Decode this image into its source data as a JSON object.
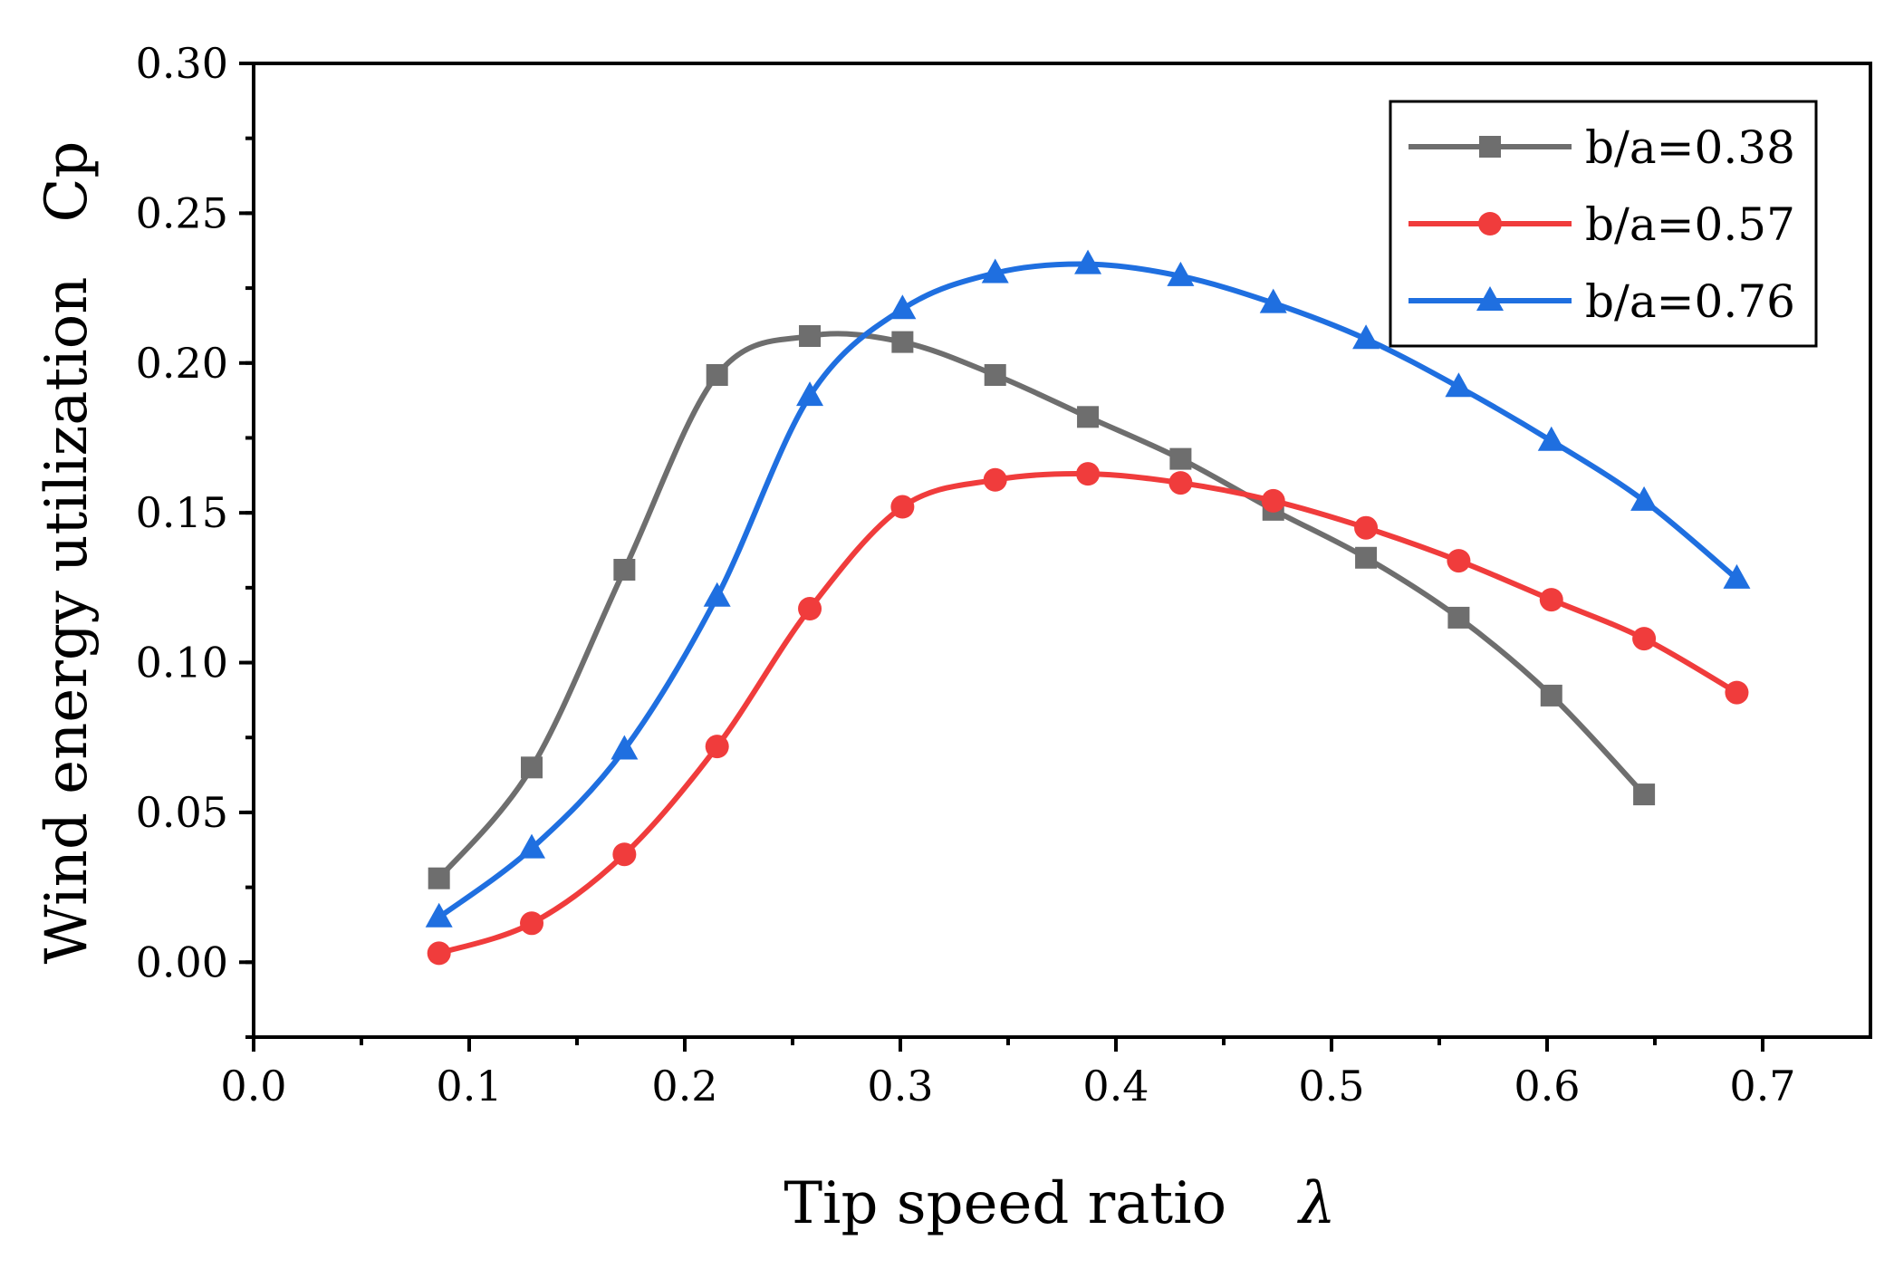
{
  "chart_data": {
    "type": "line",
    "title": "",
    "xlabel": "Tip speed ratio",
    "xlabel_symbol": "λ",
    "ylabel": "Wind energy utilization",
    "ylabel_symbol": "Cp",
    "xlim": [
      0.0,
      0.75
    ],
    "ylim": [
      -0.025,
      0.3
    ],
    "xticks": [
      "0.0",
      "0.1",
      "0.2",
      "0.3",
      "0.4",
      "0.5",
      "0.6",
      "0.7"
    ],
    "yticks": [
      "0.00",
      "0.05",
      "0.10",
      "0.15",
      "0.20",
      "0.25",
      "0.30"
    ],
    "grid": false,
    "legend_position": "top-right",
    "series": [
      {
        "name": "b/a=0.38",
        "color": "#6e6e6e",
        "marker": "square",
        "x": [
          0.086,
          0.129,
          0.172,
          0.215,
          0.258,
          0.301,
          0.344,
          0.387,
          0.43,
          0.473,
          0.516,
          0.559,
          0.602,
          0.645
        ],
        "y": [
          0.028,
          0.065,
          0.131,
          0.196,
          0.209,
          0.207,
          0.196,
          0.182,
          0.168,
          0.151,
          0.135,
          0.115,
          0.089,
          0.056
        ]
      },
      {
        "name": "b/a=0.57",
        "color": "#f03c3c",
        "marker": "circle",
        "x": [
          0.086,
          0.129,
          0.172,
          0.215,
          0.258,
          0.301,
          0.344,
          0.387,
          0.43,
          0.473,
          0.516,
          0.559,
          0.602,
          0.645,
          0.688
        ],
        "y": [
          0.003,
          0.013,
          0.036,
          0.072,
          0.118,
          0.152,
          0.161,
          0.163,
          0.16,
          0.154,
          0.145,
          0.134,
          0.121,
          0.108,
          0.09
        ]
      },
      {
        "name": "b/a=0.76",
        "color": "#1f6fe0",
        "marker": "triangle",
        "x": [
          0.086,
          0.129,
          0.172,
          0.215,
          0.258,
          0.301,
          0.344,
          0.387,
          0.43,
          0.473,
          0.516,
          0.559,
          0.602,
          0.645,
          0.688
        ],
        "y": [
          0.015,
          0.038,
          0.071,
          0.122,
          0.189,
          0.218,
          0.23,
          0.233,
          0.229,
          0.22,
          0.208,
          0.192,
          0.174,
          0.154,
          0.128
        ]
      }
    ]
  }
}
